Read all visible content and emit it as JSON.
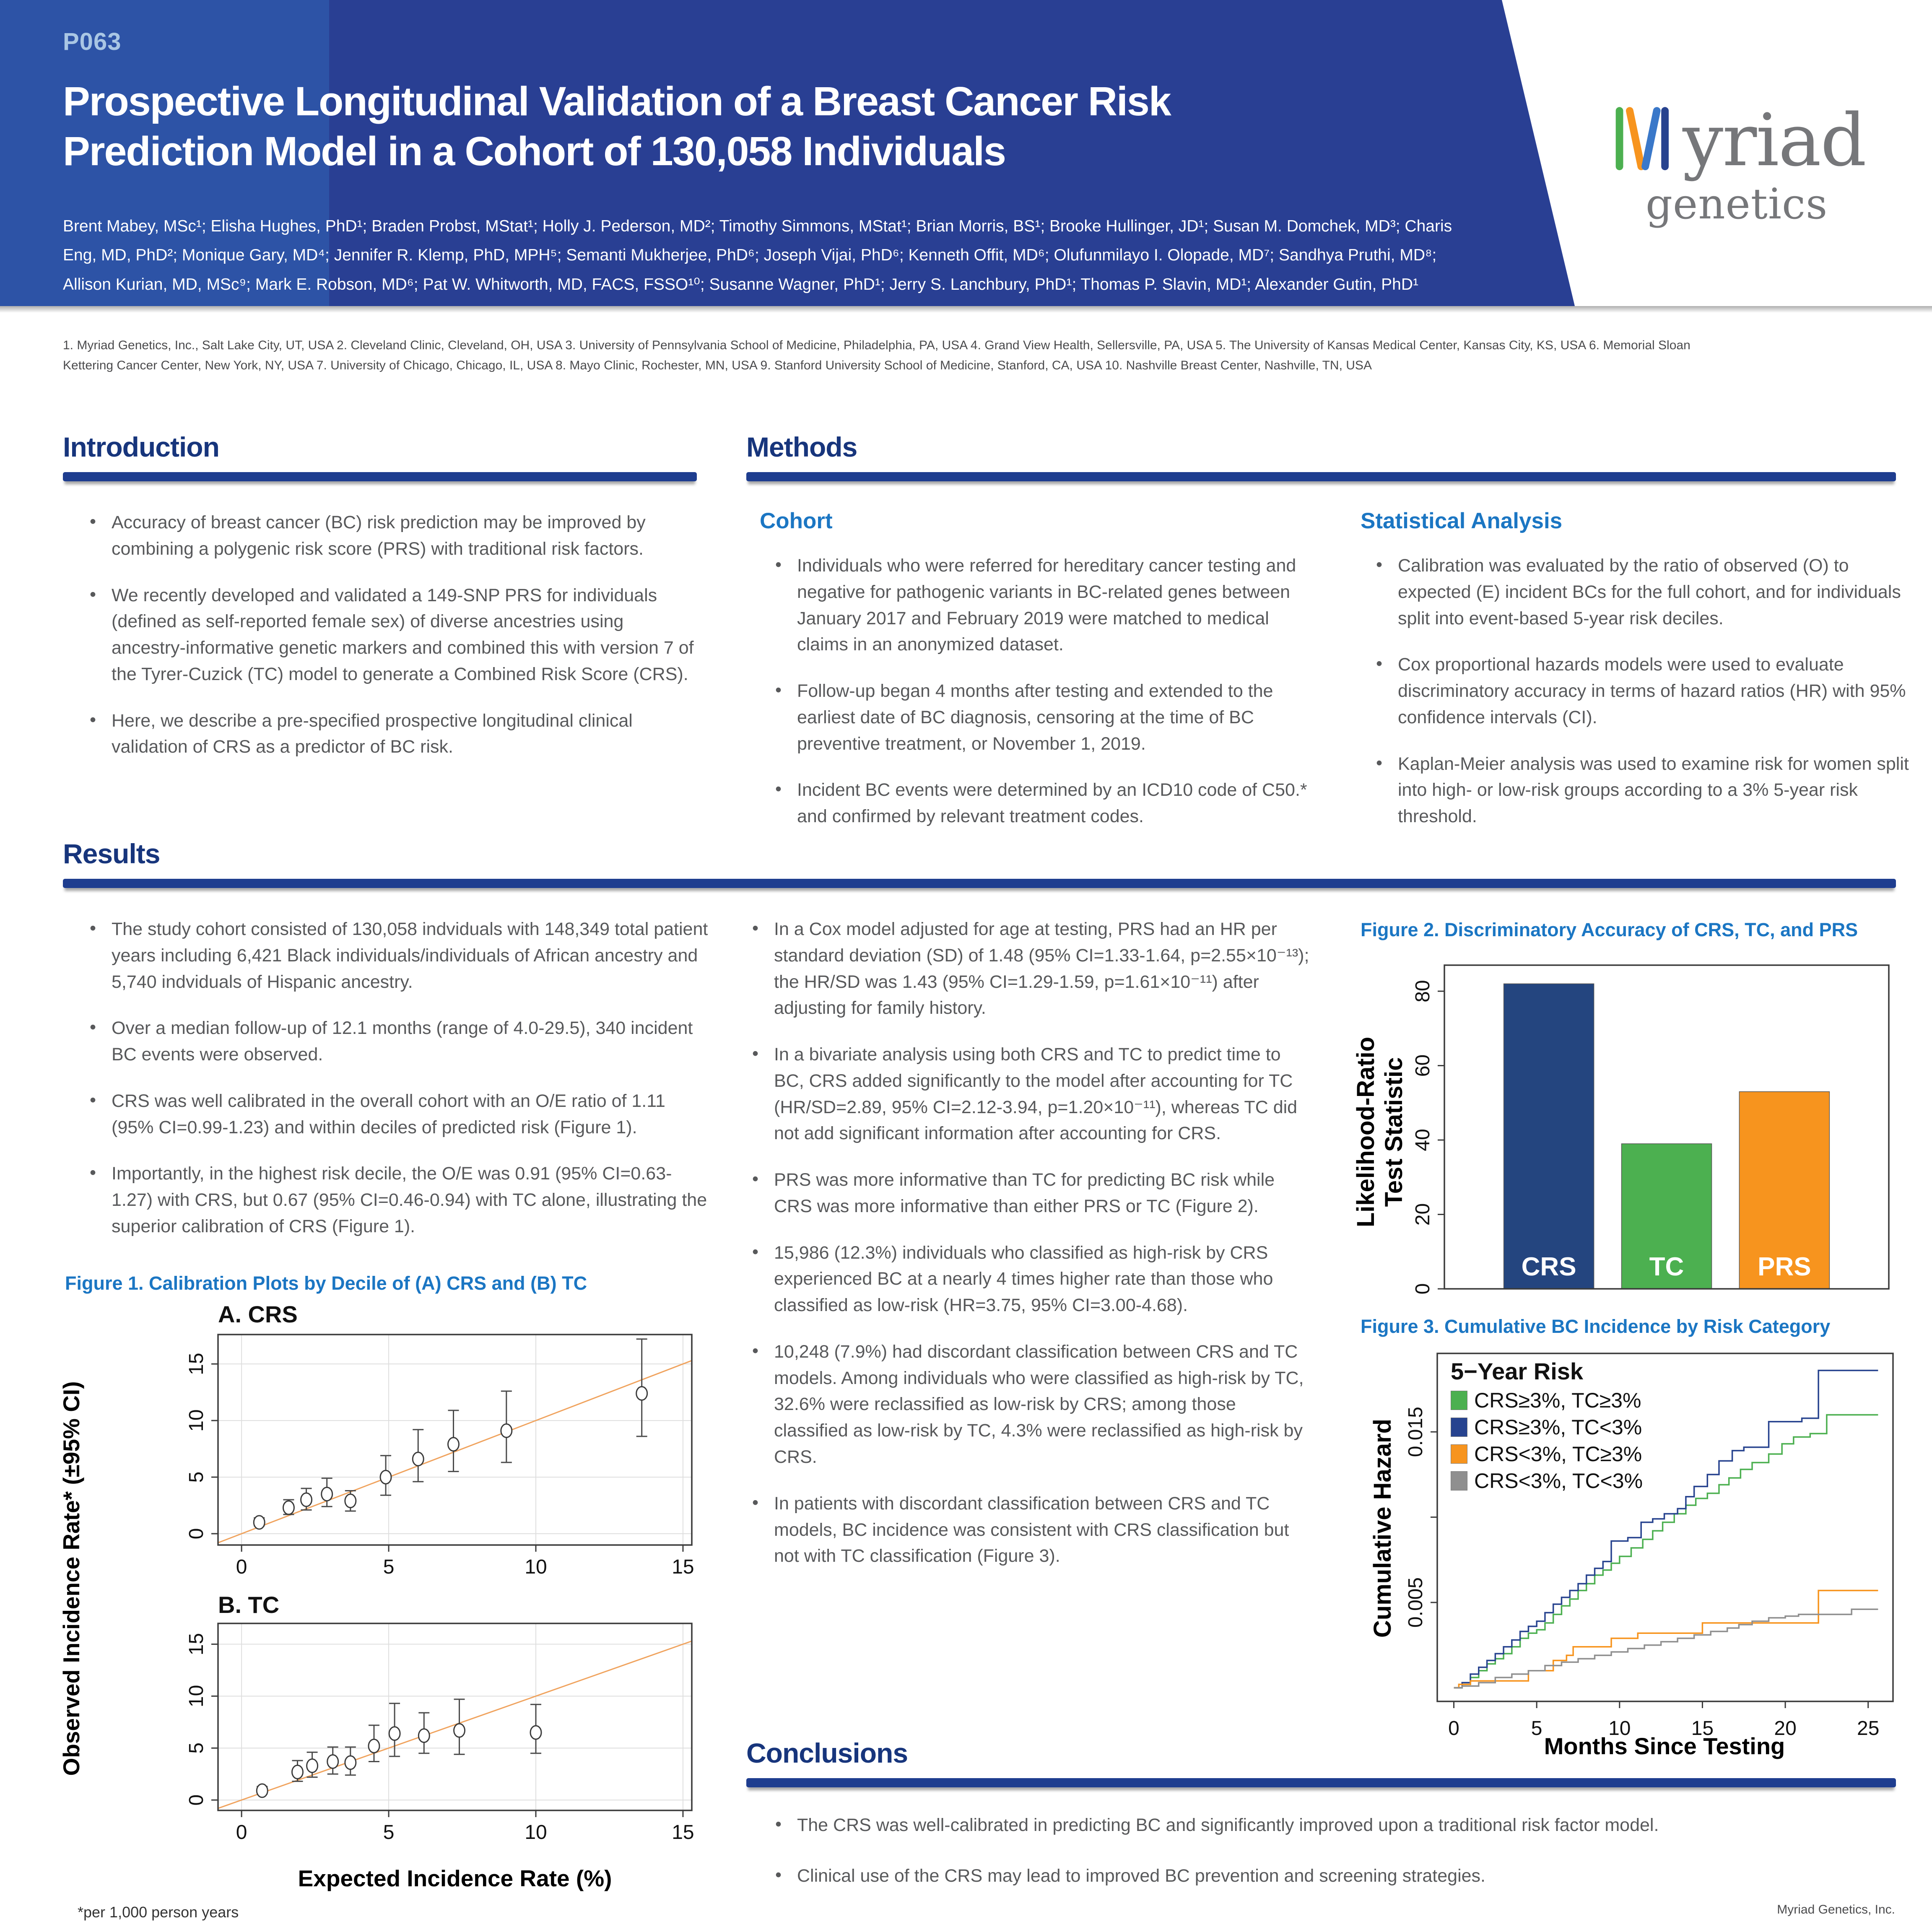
{
  "header": {
    "badge": "P063",
    "title": "Prospective Longitudinal Validation of a Breast Cancer Risk Prediction Model in a Cohort of 130,058 Individuals",
    "author_lines": [
      "Brent Mabey, MSc¹; Elisha Hughes, PhD¹; Braden Probst, MStat¹; Holly J. Pederson, MD²; Timothy Simmons, MStat¹; Brian Morris, BS¹; Brooke Hullinger, JD¹; Susan M. Domchek, MD³; Charis",
      "Eng, MD, PhD²; Monique Gary, MD⁴; Jennifer R. Klemp, PhD, MPH⁵; Semanti Mukherjee, PhD⁶; Joseph Vijai, PhD⁶; Kenneth Offit, MD⁶; Olufunmilayo I. Olopade, MD⁷; Sandhya Pruthi, MD⁸;",
      "Allison Kurian, MD, MSc⁹; Mark E. Robson, MD⁶; Pat W. Whitworth, MD, FACS, FSSO¹⁰; Susanne Wagner, PhD¹; Jerry S. Lanchbury, PhD¹; Thomas P. Slavin, MD¹; Alexander Gutin, PhD¹"
    ],
    "logo": {
      "word_top": "yriad",
      "word_bottom": "genetics"
    }
  },
  "affiliations": {
    "lines": [
      "1. Myriad Genetics, Inc., Salt Lake City, UT, USA 2. Cleveland Clinic, Cleveland, OH, USA 3. University of Pennsylvania School of Medicine, Philadelphia, PA, USA 4. Grand View Health, Sellersville, PA, USA 5. The University of Kansas Medical Center, Kansas City, KS, USA 6. Memorial Sloan",
      "Kettering Cancer Center, New York, NY, USA 7. University of Chicago, Chicago, IL, USA 8. Mayo Clinic, Rochester, MN, USA 9. Stanford University School of Medicine, Stanford, CA, USA 10. Nashville Breast Center, Nashville, TN, USA"
    ]
  },
  "sections": {
    "introduction": {
      "title": "Introduction",
      "bullets": [
        "Accuracy of breast cancer (BC) risk prediction may be improved by combining a polygenic risk score (PRS) with traditional risk factors.",
        "We recently developed and validated a 149-SNP PRS for individuals (defined as self-reported female sex) of diverse ancestries using ancestry-informative genetic markers and combined this with version 7 of the Tyrer-Cuzick (TC) model to generate a Combined Risk Score (CRS).",
        "Here, we describe a pre-specified prospective longitudinal clinical validation of CRS as a predictor of BC risk."
      ]
    },
    "methods": {
      "title": "Methods",
      "cohort": {
        "title": "Cohort",
        "bullets": [
          "Individuals who were referred for hereditary cancer testing and negative for pathogenic variants in BC-related genes between January 2017 and February 2019 were matched to medical claims in an anonymized dataset.",
          "Follow-up began 4 months after testing and extended to the earliest date of BC diagnosis, censoring at the time of BC preventive treatment, or November 1, 2019.",
          "Incident BC events were determined by an ICD10 code of C50.* and confirmed by relevant treatment codes."
        ]
      },
      "statistical_analysis": {
        "title": "Statistical Analysis",
        "bullets": [
          "Calibration was evaluated by the ratio of observed (O) to expected (E) incident BCs for the full cohort, and for individuals split into event-based 5-year risk deciles.",
          "Cox proportional hazards models were used to evaluate discriminatory accuracy in terms of hazard ratios (HR) with 95% confidence intervals (CI).",
          "Kaplan-Meier analysis was used to examine risk for women split into high- or low-risk groups according to a 3% 5-year risk threshold."
        ]
      }
    },
    "results": {
      "title": "Results",
      "column1_bullets": [
        "The study cohort consisted of 130,058 indviduals with 148,349 total patient years including 6,421 Black individuals/individuals of African ancestry and 5,740 indviduals of Hispanic ancestry.",
        "Over a median follow-up of 12.1 months (range of 4.0-29.5), 340 incident BC events were observed.",
        "CRS was well calibrated in the overall cohort with an O/E ratio of 1.11 (95% CI=0.99-1.23) and within deciles of predicted risk (Figure 1).",
        "Importantly, in the highest risk decile, the O/E was 0.91 (95% CI=0.63-1.27) with CRS, but 0.67 (95% CI=0.46-0.94) with TC alone, illustrating the superior calibration of CRS (Figure 1)."
      ],
      "column2_bullets": [
        "In a Cox model adjusted for age at testing, PRS had an HR per standard deviation (SD) of 1.48 (95% CI=1.33-1.64, p=2.55×10⁻¹³); the HR/SD was 1.43 (95% CI=1.29-1.59, p=1.61×10⁻¹¹) after adjusting for family history.",
        "In a bivariate analysis using both CRS and TC to predict time to BC, CRS added significantly to the model after accounting for TC (HR/SD=2.89, 95% CI=2.12-3.94, p=1.20×10⁻¹¹), whereas TC did not add significant information after accounting for CRS.",
        "PRS was more informative than TC for predicting BC risk while CRS was more informative than either PRS or TC (Figure 2).",
        "15,986 (12.3%) individuals who classified as high-risk by CRS experienced BC at a nearly 4 times higher rate than those who classified as low-risk (HR=3.75, 95% CI=3.00-4.68).",
        "10,248 (7.9%) had discordant classification between CRS and TC models. Among individuals who were classified as high-risk by TC, 32.6% were reclassified as low-risk by CRS; among those classified as low-risk by TC, 4.3% were reclassified as high-risk by CRS.",
        "In patients with discordant classification between CRS and TC models, BC incidence was consistent with CRS classification but not with TC classification (Figure 3)."
      ]
    },
    "conclusions": {
      "title": "Conclusions",
      "bullets": [
        "The CRS was well-calibrated in predicting BC and significantly improved upon a traditional risk factor model.",
        "Clinical use of the CRS may lead to improved BC prevention and screening strategies."
      ]
    }
  },
  "figures": {
    "figure1": {
      "caption": "Figure 1. Calibration Plots by Decile of (A) CRS and (B) TC",
      "panel_a_label": "A. CRS",
      "panel_b_label": "B. TC",
      "ylabel": "Observed Incidence Rate* (±95% CI)",
      "xlabel": "Expected Incidence Rate (%)",
      "footnote": "*per 1,000 person years"
    },
    "figure2": {
      "caption": "Figure 2. Discriminatory Accuracy of CRS, TC, and PRS",
      "ylabel_line1": "Likelihood-Ratio",
      "ylabel_line2": "Test Statistic"
    },
    "figure3": {
      "caption": "Figure 3. Cumulative BC Incidence by Risk Category",
      "ylabel": "Cumulative Hazard",
      "xlabel": "Months Since Testing",
      "legend_title": "5−Year Risk"
    }
  },
  "footer": {
    "text": "Myriad Genetics, Inc."
  },
  "chart_data": [
    {
      "id": "figure1a",
      "type": "scatter",
      "title": "A. CRS",
      "xlabel": "Expected Incidence Rate (%)",
      "ylabel": "Observed Incidence Rate* (±95% CI), per 1,000 person years",
      "xlim": [
        -0.8,
        15.3
      ],
      "ylim": [
        -1.0,
        17.6
      ],
      "xticks": [
        0,
        5,
        10,
        15
      ],
      "yticks": [
        0,
        5,
        10,
        15
      ],
      "diagonal": true,
      "points": [
        {
          "x": 0.6,
          "y": 1.0,
          "lo": 0.7,
          "hi": 1.4
        },
        {
          "x": 1.6,
          "y": 2.3,
          "lo": 1.7,
          "hi": 3.0
        },
        {
          "x": 2.2,
          "y": 3.0,
          "lo": 2.1,
          "hi": 4.0
        },
        {
          "x": 2.9,
          "y": 3.5,
          "lo": 2.4,
          "hi": 4.9
        },
        {
          "x": 3.7,
          "y": 2.9,
          "lo": 2.0,
          "hi": 3.8
        },
        {
          "x": 4.9,
          "y": 5.0,
          "lo": 3.4,
          "hi": 6.9
        },
        {
          "x": 6.0,
          "y": 6.6,
          "lo": 4.6,
          "hi": 9.2
        },
        {
          "x": 7.2,
          "y": 7.9,
          "lo": 5.5,
          "hi": 10.9
        },
        {
          "x": 9.0,
          "y": 9.1,
          "lo": 6.3,
          "hi": 12.6
        },
        {
          "x": 13.6,
          "y": 12.4,
          "lo": 8.6,
          "hi": 17.2
        }
      ]
    },
    {
      "id": "figure1b",
      "type": "scatter",
      "title": "B. TC",
      "xlabel": "Expected Incidence Rate (%)",
      "ylabel": "Observed Incidence Rate* (±95% CI), per 1,000 person years",
      "xlim": [
        -0.8,
        15.3
      ],
      "ylim": [
        -1.0,
        17.0
      ],
      "xticks": [
        0,
        5,
        10,
        15
      ],
      "yticks": [
        0,
        5,
        10,
        15
      ],
      "diagonal": true,
      "points": [
        {
          "x": 0.7,
          "y": 0.9,
          "lo": 0.6,
          "hi": 1.3
        },
        {
          "x": 1.9,
          "y": 2.7,
          "lo": 1.8,
          "hi": 3.8
        },
        {
          "x": 2.4,
          "y": 3.3,
          "lo": 2.2,
          "hi": 4.6
        },
        {
          "x": 3.1,
          "y": 3.7,
          "lo": 2.5,
          "hi": 5.1
        },
        {
          "x": 3.7,
          "y": 3.6,
          "lo": 2.4,
          "hi": 5.1
        },
        {
          "x": 4.5,
          "y": 5.2,
          "lo": 3.7,
          "hi": 7.2
        },
        {
          "x": 5.2,
          "y": 6.4,
          "lo": 4.2,
          "hi": 9.3
        },
        {
          "x": 6.2,
          "y": 6.2,
          "lo": 4.5,
          "hi": 8.4
        },
        {
          "x": 7.4,
          "y": 6.7,
          "lo": 4.4,
          "hi": 9.7
        },
        {
          "x": 10.0,
          "y": 6.5,
          "lo": 4.5,
          "hi": 9.2
        }
      ]
    },
    {
      "id": "figure2",
      "type": "bar",
      "title": "Figure 2. Discriminatory Accuracy of CRS, TC, and PRS",
      "categories": [
        "CRS",
        "TC",
        "PRS"
      ],
      "values": [
        82,
        39,
        53
      ],
      "colors": [
        "#24457f",
        "#4cb050",
        "#f7941e"
      ],
      "xlabel": "",
      "ylabel": "Likelihood-Ratio Test Statistic",
      "ylim": [
        0,
        87
      ],
      "yticks": [
        0,
        20,
        40,
        60,
        80
      ]
    },
    {
      "id": "figure3",
      "type": "line",
      "title": "Figure 3. Cumulative BC Incidence by Risk Category",
      "xlabel": "Months Since Testing",
      "ylabel": "Cumulative Hazard",
      "xlim": [
        -1,
        26.5
      ],
      "ylim": [
        -0.0008,
        0.0196
      ],
      "xticks": [
        0,
        5,
        10,
        15,
        20,
        25
      ],
      "yticks": [
        0.005,
        0.01,
        0.015
      ],
      "ytick_labels": [
        "0.005",
        "",
        "0.015"
      ],
      "legend_title": "5−Year Risk",
      "legend_position": "top-left",
      "series": [
        {
          "name": "CRS≥3%, TC≥3%",
          "color": "#4cb050",
          "points": [
            [
              0,
              0
            ],
            [
              0.5,
              0.0002
            ],
            [
              1,
              0.0006
            ],
            [
              1.5,
              0.001
            ],
            [
              2,
              0.0014
            ],
            [
              2.5,
              0.0017
            ],
            [
              3,
              0.002
            ],
            [
              3.5,
              0.0024
            ],
            [
              4,
              0.0029
            ],
            [
              4.5,
              0.0032
            ],
            [
              5,
              0.0034
            ],
            [
              5.5,
              0.0038
            ],
            [
              6,
              0.0043
            ],
            [
              6.5,
              0.0048
            ],
            [
              7,
              0.0052
            ],
            [
              7.5,
              0.0057
            ],
            [
              8,
              0.0061
            ],
            [
              8.5,
              0.0066
            ],
            [
              9,
              0.0069
            ],
            [
              9.5,
              0.0073
            ],
            [
              10,
              0.0077
            ],
            [
              10.7,
              0.0082
            ],
            [
              11.4,
              0.0087
            ],
            [
              12,
              0.0092
            ],
            [
              12.6,
              0.0097
            ],
            [
              13.3,
              0.0102
            ],
            [
              14,
              0.0107
            ],
            [
              14.6,
              0.0111
            ],
            [
              15.3,
              0.0114
            ],
            [
              16,
              0.0119
            ],
            [
              16.6,
              0.0123
            ],
            [
              17.3,
              0.0128
            ],
            [
              18,
              0.0132
            ],
            [
              19,
              0.0137
            ],
            [
              19.8,
              0.0143
            ],
            [
              20.5,
              0.0147
            ],
            [
              21.5,
              0.0149
            ],
            [
              22.5,
              0.016
            ],
            [
              25.6,
              0.016
            ]
          ]
        },
        {
          "name": "CRS≥3%, TC<3%",
          "color": "#27438f",
          "points": [
            [
              0,
              0
            ],
            [
              0.5,
              0.0003
            ],
            [
              1,
              0.0008
            ],
            [
              1.5,
              0.0012
            ],
            [
              2,
              0.0016
            ],
            [
              2.5,
              0.002
            ],
            [
              3,
              0.0024
            ],
            [
              3.5,
              0.0028
            ],
            [
              4,
              0.0033
            ],
            [
              4.5,
              0.0036
            ],
            [
              5,
              0.0039
            ],
            [
              5.5,
              0.0044
            ],
            [
              6,
              0.0049
            ],
            [
              6.5,
              0.0053
            ],
            [
              7,
              0.0057
            ],
            [
              7.5,
              0.0061
            ],
            [
              8,
              0.0066
            ],
            [
              8.5,
              0.007
            ],
            [
              9,
              0.0074
            ],
            [
              9.5,
              0.0086
            ],
            [
              10.5,
              0.0088
            ],
            [
              11.3,
              0.0097
            ],
            [
              12,
              0.0099
            ],
            [
              12.7,
              0.0102
            ],
            [
              13.5,
              0.0105
            ],
            [
              14,
              0.0112
            ],
            [
              14.5,
              0.0118
            ],
            [
              15.3,
              0.0125
            ],
            [
              16,
              0.0133
            ],
            [
              16.8,
              0.0139
            ],
            [
              17.5,
              0.0141
            ],
            [
              19,
              0.0156
            ],
            [
              21,
              0.0158
            ],
            [
              22,
              0.0186
            ],
            [
              25.6,
              0.0186
            ]
          ]
        },
        {
          "name": "CRS<3%, TC≥3%",
          "color": "#f7941e",
          "points": [
            [
              0,
              0
            ],
            [
              0.3,
              0.0002
            ],
            [
              1,
              0.0004
            ],
            [
              4.4,
              0.0004
            ],
            [
              4.5,
              0.001
            ],
            [
              5.8,
              0.001
            ],
            [
              6,
              0.0016
            ],
            [
              6.8,
              0.0019
            ],
            [
              7.2,
              0.0024
            ],
            [
              9.4,
              0.0024
            ],
            [
              9.5,
              0.0029
            ],
            [
              10.9,
              0.0029
            ],
            [
              11.1,
              0.0032
            ],
            [
              14.9,
              0.0032
            ],
            [
              15,
              0.0038
            ],
            [
              21.8,
              0.0038
            ],
            [
              22,
              0.0057
            ],
            [
              25.6,
              0.0057
            ]
          ]
        },
        {
          "name": "CRS<3%, TC<3%",
          "color": "#8f8f8f",
          "points": [
            [
              0,
              0
            ],
            [
              0.5,
              0.0001
            ],
            [
              1.5,
              0.0003
            ],
            [
              2.5,
              0.0006
            ],
            [
              3.5,
              0.0008
            ],
            [
              4.5,
              0.001
            ],
            [
              5.5,
              0.0013
            ],
            [
              6.5,
              0.0015
            ],
            [
              7.5,
              0.0017
            ],
            [
              8.5,
              0.0019
            ],
            [
              9.5,
              0.0021
            ],
            [
              10.5,
              0.0023
            ],
            [
              11.5,
              0.0025
            ],
            [
              12.5,
              0.0027
            ],
            [
              13.5,
              0.0029
            ],
            [
              14.5,
              0.0031
            ],
            [
              15.5,
              0.0033
            ],
            [
              16.5,
              0.0035
            ],
            [
              17.2,
              0.0037
            ],
            [
              18,
              0.0039
            ],
            [
              19,
              0.0041
            ],
            [
              20,
              0.0042
            ],
            [
              20.8,
              0.0043
            ],
            [
              23.8,
              0.0043
            ],
            [
              24,
              0.0046
            ],
            [
              25.6,
              0.0046
            ]
          ]
        }
      ]
    }
  ]
}
